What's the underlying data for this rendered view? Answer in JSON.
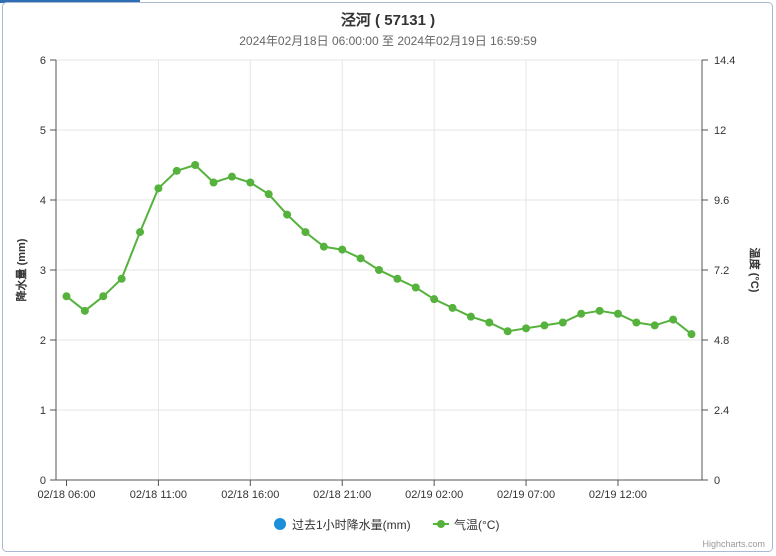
{
  "chart_data": {
    "type": "line",
    "title": "泾河 ( 57131 )",
    "subtitle": "2024年02月18日 06:00:00 至 2024年02月19日 16:59:59",
    "x": [
      "02/18 06:00",
      "02/18 07:00",
      "02/18 08:00",
      "02/18 09:00",
      "02/18 10:00",
      "02/18 11:00",
      "02/18 12:00",
      "02/18 13:00",
      "02/18 14:00",
      "02/18 15:00",
      "02/18 16:00",
      "02/18 17:00",
      "02/18 18:00",
      "02/18 19:00",
      "02/18 20:00",
      "02/18 21:00",
      "02/18 22:00",
      "02/18 23:00",
      "02/19 00:00",
      "02/19 01:00",
      "02/19 02:00",
      "02/19 03:00",
      "02/19 04:00",
      "02/19 05:00",
      "02/19 06:00",
      "02/19 07:00",
      "02/19 08:00",
      "02/19 09:00",
      "02/19 10:00",
      "02/19 11:00",
      "02/19 12:00",
      "02/19 13:00",
      "02/19 14:00",
      "02/19 15:00",
      "02/19 16:00"
    ],
    "x_ticks": [
      "02/18 06:00",
      "02/18 11:00",
      "02/18 16:00",
      "02/18 21:00",
      "02/19 02:00",
      "02/19 07:00",
      "02/19 12:00"
    ],
    "y_left": {
      "label": "降水量 (mm)",
      "range": [
        0,
        6
      ],
      "ticks": [
        0,
        1,
        2,
        3,
        4,
        5,
        6
      ]
    },
    "y_right": {
      "label": "温度 (°C)",
      "range": [
        0,
        14.4
      ],
      "ticks": [
        0,
        2.4,
        4.8,
        7.2,
        9.6,
        12,
        14.4
      ]
    },
    "series": [
      {
        "name": "过去1小时降水量(mm)",
        "type": "bar",
        "axis": "left",
        "color": "#1b8fd8",
        "values": [
          0,
          0,
          0,
          0,
          0,
          0,
          0,
          0,
          0,
          0,
          0,
          0,
          0,
          0,
          0,
          0,
          0,
          0,
          0,
          0,
          0,
          0,
          0,
          0,
          0,
          0,
          0,
          0,
          0,
          0,
          0,
          0,
          0,
          0,
          0
        ]
      },
      {
        "name": "气温(°C)",
        "type": "line",
        "axis": "right",
        "color": "#55b23c",
        "values": [
          6.3,
          5.8,
          6.3,
          6.9,
          8.5,
          10.0,
          10.6,
          10.8,
          10.2,
          10.4,
          10.2,
          9.8,
          9.1,
          8.5,
          8.0,
          7.9,
          7.6,
          7.2,
          6.9,
          6.6,
          6.2,
          5.9,
          5.6,
          5.4,
          5.1,
          5.2,
          5.3,
          5.4,
          5.7,
          5.8,
          5.7,
          5.4,
          5.3,
          5.5,
          5.0
        ]
      }
    ],
    "grid": true,
    "legend": "bottom-center"
  },
  "credits": "Highcharts.com"
}
